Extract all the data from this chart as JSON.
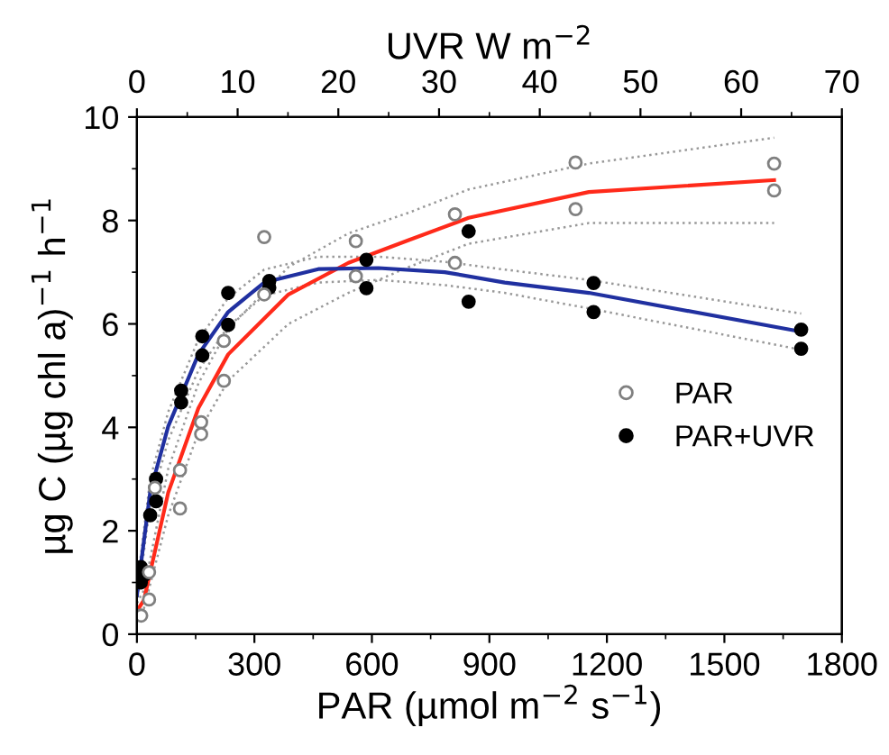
{
  "chart_data": {
    "type": "scatter",
    "xlabel": "PAR (µmol m$^{−2}$ s$^{−1}$)",
    "ylabel": "µg C (µg chl a)$^{−1}$ h$^{−1}$",
    "x2label": "UVR W m$^{−2}$",
    "xlim": [
      0,
      1800
    ],
    "xticks": [
      0,
      300,
      600,
      900,
      1200,
      1500,
      1800
    ],
    "x2lim": [
      0,
      70
    ],
    "x2ticks": [
      0,
      10,
      20,
      30,
      40,
      50,
      60,
      70
    ],
    "ylim": [
      0,
      10
    ],
    "yticks": [
      0,
      2,
      4,
      6,
      8,
      10
    ],
    "grid": false,
    "legend": "right",
    "series": [
      {
        "name": "PAR",
        "marker": "circle",
        "color": "#ffffff",
        "x": [
          11,
          31,
          31,
          46,
          110,
          110,
          164,
          164,
          222,
          222,
          325,
          325,
          559,
          559,
          812,
          812,
          1120,
          1120,
          1627,
          1627
        ],
        "values": [
          0.36,
          0.67,
          1.2,
          2.83,
          3.17,
          2.43,
          4.1,
          3.87,
          5.67,
          4.9,
          7.68,
          6.57,
          7.6,
          6.92,
          8.12,
          7.18,
          9.12,
          8.22,
          9.1,
          8.58
        ]
      },
      {
        "name": "PAR+UVR",
        "marker": "circle",
        "color": "#000000",
        "x": [
          10,
          10,
          20,
          34,
          49,
          49,
          113,
          113,
          167,
          167,
          233,
          233,
          338,
          338,
          586,
          586,
          847,
          847,
          1166,
          1166,
          1696,
          1696
        ],
        "values": [
          1.3,
          1.0,
          1.15,
          2.3,
          3.0,
          2.57,
          4.71,
          4.48,
          5.76,
          5.39,
          6.6,
          5.98,
          6.83,
          6.7,
          7.24,
          6.69,
          7.79,
          6.43,
          6.79,
          6.23,
          5.89,
          5.52
        ]
      },
      {
        "type": "line",
        "line_style": "solid",
        "color": "#ff2a1a",
        "x": [
          0,
          18,
          80,
          157,
          233,
          387,
          540,
          694,
          847,
          1154,
          1627
        ],
        "values": [
          0.45,
          0.66,
          2.74,
          4.37,
          5.41,
          6.57,
          7.18,
          7.62,
          8.05,
          8.55,
          8.78
        ]
      },
      {
        "type": "line",
        "line_style": "dotted",
        "color": "#999999",
        "x": [
          0,
          18,
          80,
          157,
          233,
          387,
          540,
          694,
          847,
          1154,
          1627
        ],
        "values": [
          0.3,
          0.5,
          2.3,
          3.9,
          4.9,
          6.0,
          6.6,
          7.1,
          7.55,
          7.95,
          7.95
        ]
      },
      {
        "type": "line",
        "line_style": "dotted",
        "color": "#999999",
        "x": [
          0,
          18,
          80,
          157,
          233,
          387,
          540,
          694,
          847,
          1154,
          1627
        ],
        "values": [
          0.6,
          0.85,
          3.2,
          4.85,
          5.9,
          7.1,
          7.75,
          8.15,
          8.6,
          9.1,
          9.6
        ]
      },
      {
        "type": "line",
        "line_style": "solid",
        "color": "#2030a0",
        "x": [
          0,
          34,
          80,
          157,
          233,
          325,
          463,
          617,
          786,
          939,
          1154,
          1696
        ],
        "values": [
          0.75,
          2.75,
          4.02,
          5.41,
          6.23,
          6.8,
          7.06,
          7.08,
          7.0,
          6.8,
          6.6,
          5.85
        ]
      },
      {
        "type": "line",
        "line_style": "dotted",
        "color": "#999999",
        "x": [
          0,
          34,
          80,
          157,
          233,
          325,
          463,
          617,
          786,
          939,
          1154,
          1696
        ],
        "values": [
          0.6,
          2.5,
          3.75,
          5.1,
          5.95,
          6.55,
          6.8,
          6.85,
          6.75,
          6.6,
          6.3,
          5.5
        ]
      },
      {
        "type": "line",
        "line_style": "dotted",
        "color": "#999999",
        "x": [
          0,
          34,
          80,
          157,
          233,
          325,
          463,
          617,
          786,
          939,
          1154,
          1696
        ],
        "values": [
          0.9,
          3.0,
          4.3,
          5.7,
          6.5,
          7.05,
          7.3,
          7.3,
          7.2,
          7.05,
          6.85,
          6.2
        ]
      }
    ]
  }
}
